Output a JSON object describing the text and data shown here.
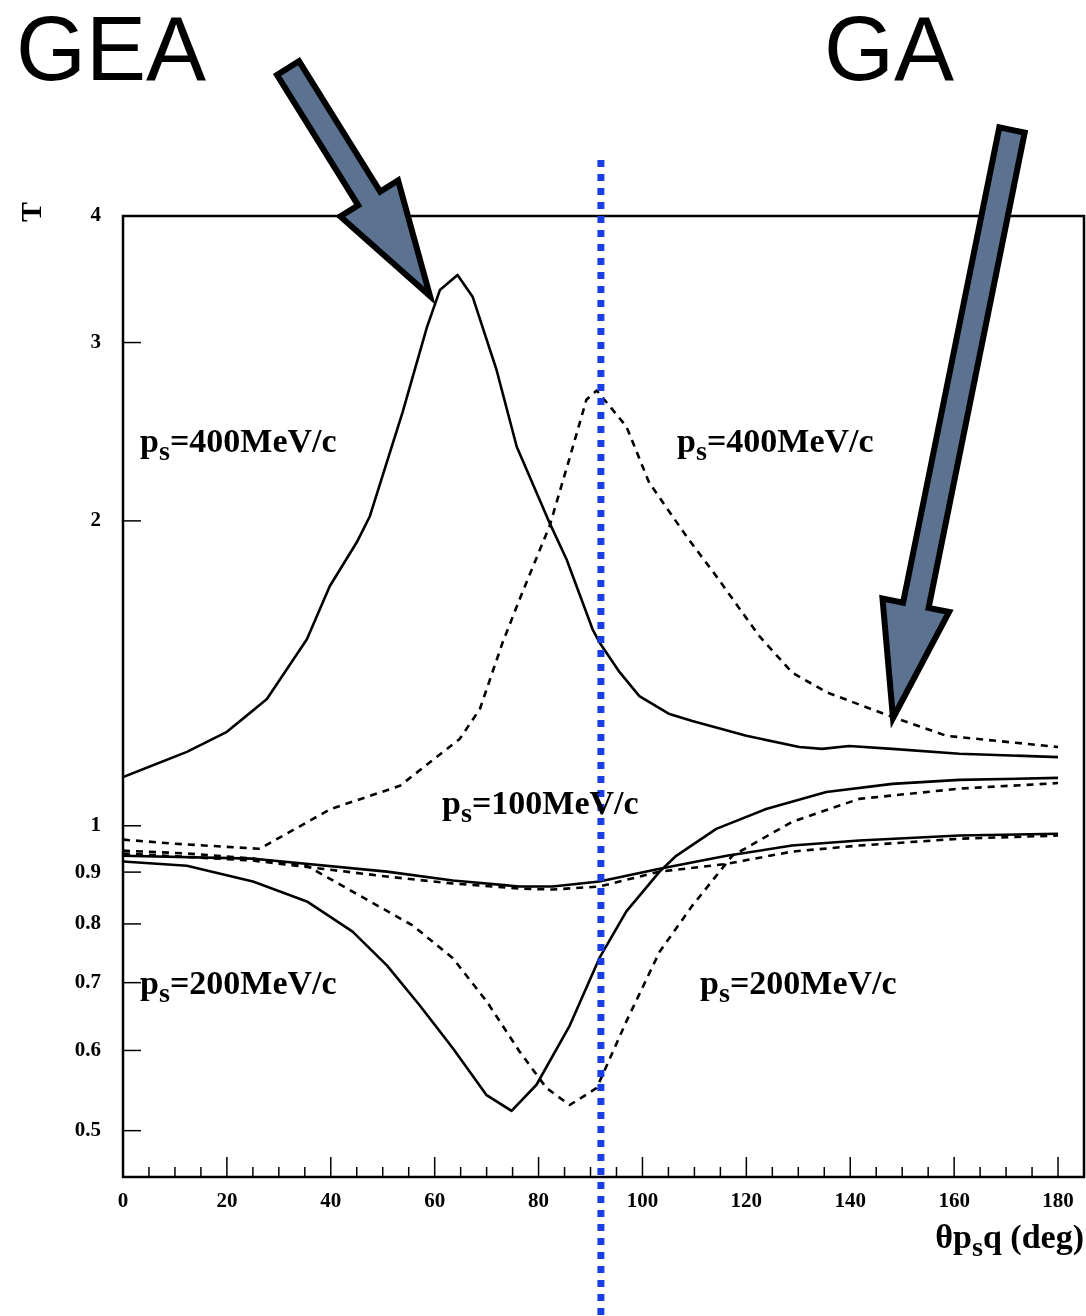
{
  "chart_data": {
    "type": "line",
    "xlabel": "θp$_{s}$q (deg)",
    "ylabel": "T",
    "log": "y",
    "grid": false,
    "legend": false,
    "marker": "none",
    "xlim": [
      0,
      185
    ],
    "ylim": [
      0.45,
      4
    ],
    "xticks": [
      0,
      {
        "value": 5,
        "label": null
      },
      {
        "value": 10,
        "label": null
      },
      {
        "value": 15,
        "label": null
      },
      20,
      {
        "value": 25,
        "label": null
      },
      {
        "value": 30,
        "label": null
      },
      {
        "value": 35,
        "label": null
      },
      40,
      {
        "value": 45,
        "label": null
      },
      {
        "value": 50,
        "label": null
      },
      {
        "value": 55,
        "label": null
      },
      60,
      {
        "value": 65,
        "label": null
      },
      {
        "value": 70,
        "label": null
      },
      {
        "value": 75,
        "label": null
      },
      80,
      {
        "value": 85,
        "label": null
      },
      {
        "value": 90,
        "label": null
      },
      {
        "value": 95,
        "label": null
      },
      100,
      {
        "value": 105,
        "label": null
      },
      {
        "value": 110,
        "label": null
      },
      {
        "value": 115,
        "label": null
      },
      120,
      {
        "value": 125,
        "label": null
      },
      {
        "value": 130,
        "label": null
      },
      {
        "value": 135,
        "label": null
      },
      140,
      {
        "value": 145,
        "label": null
      },
      {
        "value": 150,
        "label": null
      },
      {
        "value": 155,
        "label": null
      },
      160,
      {
        "value": 165,
        "label": null
      },
      {
        "value": 170,
        "label": null
      },
      {
        "value": 175,
        "label": null
      },
      180
    ],
    "yticks": [
      0.5,
      0.6,
      0.7,
      0.8,
      0.9,
      1,
      2,
      3,
      4
    ],
    "series": [
      {
        "color": "#000000",
        "line_style": "solid",
        "x": [
          0,
          12.3,
          20,
          27.7,
          35.4,
          39.8,
          45,
          47.5,
          53.8,
          58.5,
          61,
          64.4,
          67.3,
          71.9,
          75.8,
          82.1,
          85.4,
          90.4,
          91.7,
          95.6,
          99.4,
          105.2,
          109.6,
          120,
          130.2,
          134.6,
          139.8,
          148.1,
          161,
          180
        ],
        "values": [
          1.117,
          1.183,
          1.238,
          1.334,
          1.528,
          1.724,
          1.905,
          2.02,
          2.558,
          3.105,
          3.38,
          3.498,
          3.33,
          2.82,
          2.367,
          1.992,
          1.832,
          1.563,
          1.518,
          1.418,
          1.343,
          1.289,
          1.269,
          1.227,
          1.196,
          1.191,
          1.199,
          1.191,
          1.178,
          1.169
        ]
      },
      {
        "color": "#000000",
        "line_style": "dashed",
        "x": [
          0,
          10,
          26.3,
          40,
          53.3,
          64.8,
          68.7,
          73.1,
          76.9,
          82.1,
          85.9,
          89.2,
          91.2,
          96.9,
          101.3,
          108.5,
          114.2,
          122.5,
          128.8,
          135.4,
          147.5,
          158.5,
          180
        ],
        "values": [
          0.969,
          0.96,
          0.949,
          1.039,
          1.095,
          1.218,
          1.304,
          1.518,
          1.701,
          1.975,
          2.3,
          2.634,
          2.69,
          2.479,
          2.181,
          1.93,
          1.764,
          1.539,
          1.417,
          1.355,
          1.284,
          1.227,
          1.196
        ]
      },
      {
        "color": "#000000",
        "line_style": "solid",
        "x": [
          0,
          12.3,
          25,
          35.4,
          44.2,
          50.8,
          57.1,
          63.5,
          70,
          74.8,
          79.6,
          86,
          91.7,
          96.9,
          103.3,
          106.5,
          114.2,
          123.8,
          135.4,
          148.1,
          161,
          180
        ],
        "values": [
          0.922,
          0.913,
          0.881,
          0.842,
          0.786,
          0.728,
          0.665,
          0.603,
          0.542,
          0.523,
          0.555,
          0.635,
          0.74,
          0.823,
          0.901,
          0.934,
          0.993,
          1.039,
          1.08,
          1.1,
          1.11,
          1.115
        ]
      },
      {
        "color": "#000000",
        "line_style": "dashed",
        "x": [
          0,
          12.3,
          25,
          35.4,
          44.2,
          55.8,
          63.5,
          70,
          76.3,
          81.5,
          86,
          91.2,
          96.9,
          103.3,
          109.6,
          117.3,
          128.8,
          141.7,
          161,
          180
        ],
        "values": [
          0.945,
          0.939,
          0.928,
          0.913,
          0.861,
          0.797,
          0.74,
          0.671,
          0.599,
          0.551,
          0.53,
          0.551,
          0.641,
          0.751,
          0.834,
          0.934,
          1.009,
          1.063,
          1.088,
          1.102
        ]
      },
      {
        "color": "#000000",
        "line_style": "solid",
        "x": [
          0,
          25,
          50.8,
          63.5,
          76.3,
          82.7,
          91.7,
          103.3,
          116.2,
          128.8,
          141.7,
          161,
          180
        ],
        "values": [
          0.934,
          0.928,
          0.901,
          0.883,
          0.871,
          0.871,
          0.881,
          0.907,
          0.934,
          0.956,
          0.967,
          0.978,
          0.982
        ]
      },
      {
        "color": "#000000",
        "line_style": "dashed",
        "x": [
          0,
          25,
          50.8,
          63.5,
          76.3,
          82.7,
          91.7,
          103.3,
          116.2,
          128.8,
          141.7,
          161,
          180
        ],
        "values": [
          0.939,
          0.924,
          0.891,
          0.877,
          0.867,
          0.865,
          0.871,
          0.901,
          0.917,
          0.943,
          0.956,
          0.971,
          0.978
        ]
      }
    ],
    "ref_lines": [
      {
        "axis": "x",
        "value": 92,
        "color": "#1a3ee6",
        "line_style": "dotted"
      }
    ],
    "annotations": [
      "GEA",
      "GA",
      "p$_{s}$=400MeV/c",
      "p$_{s}$=400MeV/c",
      "p$_{s}$=100MeV/c",
      "p$_{s}$=200MeV/c",
      "p$_{s}$=200MeV/c"
    ]
  }
}
